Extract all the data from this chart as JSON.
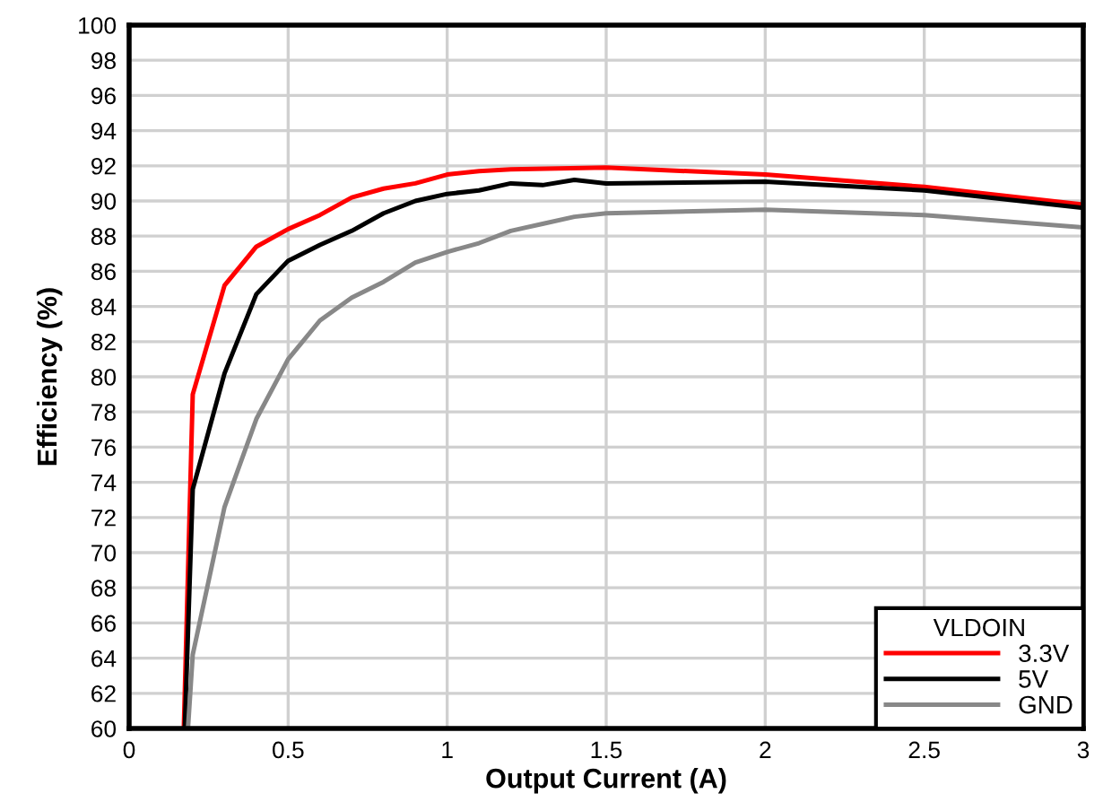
{
  "chart_data": {
    "type": "line",
    "xlabel": "Output Current (A)",
    "ylabel": "Efficiency (%)",
    "legend_title": "VLDOIN",
    "legend": "bottom right",
    "grid": true,
    "marker": "none",
    "line_style": "solid",
    "xlim": [
      0,
      3
    ],
    "xticks": [
      0,
      0.5,
      1,
      1.5,
      2,
      2.5,
      3
    ],
    "ylim": [
      60,
      100
    ],
    "yticks": [
      60,
      62,
      64,
      66,
      68,
      70,
      72,
      74,
      76,
      78,
      80,
      82,
      84,
      86,
      88,
      90,
      92,
      94,
      96,
      98,
      100
    ],
    "series": [
      {
        "name": "3.3V",
        "color": "#ff0000",
        "x": [
          0.172,
          0.2,
          0.3,
          0.4,
          0.5,
          0.6,
          0.7,
          0.8,
          0.9,
          1.0,
          1.1,
          1.2,
          1.5,
          2.0,
          2.5,
          3.0
        ],
        "values": [
          60,
          79,
          85.2,
          87.4,
          88.4,
          89.2,
          90.2,
          90.7,
          91,
          91.5,
          91.7,
          91.8,
          91.9,
          91.5,
          90.8,
          89.8
        ]
      },
      {
        "name": "5V",
        "color": "#000000",
        "x": [
          0.175,
          0.2,
          0.3,
          0.4,
          0.5,
          0.6,
          0.7,
          0.8,
          0.9,
          1.0,
          1.1,
          1.2,
          1.3,
          1.4,
          1.5,
          2.0,
          2.5,
          3.0
        ],
        "values": [
          60,
          73.6,
          80.2,
          84.7,
          86.6,
          87.5,
          88.3,
          89.3,
          90,
          90.4,
          90.6,
          91,
          90.9,
          91.2,
          91,
          91.1,
          90.6,
          89.6
        ]
      },
      {
        "name": "GND",
        "color": "#888888",
        "x": [
          0.185,
          0.2,
          0.3,
          0.4,
          0.5,
          0.6,
          0.7,
          0.8,
          0.9,
          1.0,
          1.1,
          1.2,
          1.3,
          1.4,
          1.5,
          2.0,
          2.5,
          3.0
        ],
        "values": [
          60,
          64.2,
          72.6,
          77.6,
          81,
          83.2,
          84.5,
          85.4,
          86.5,
          87.1,
          87.6,
          88.3,
          88.7,
          89.1,
          89.3,
          89.5,
          89.2,
          88.5
        ]
      }
    ]
  }
}
